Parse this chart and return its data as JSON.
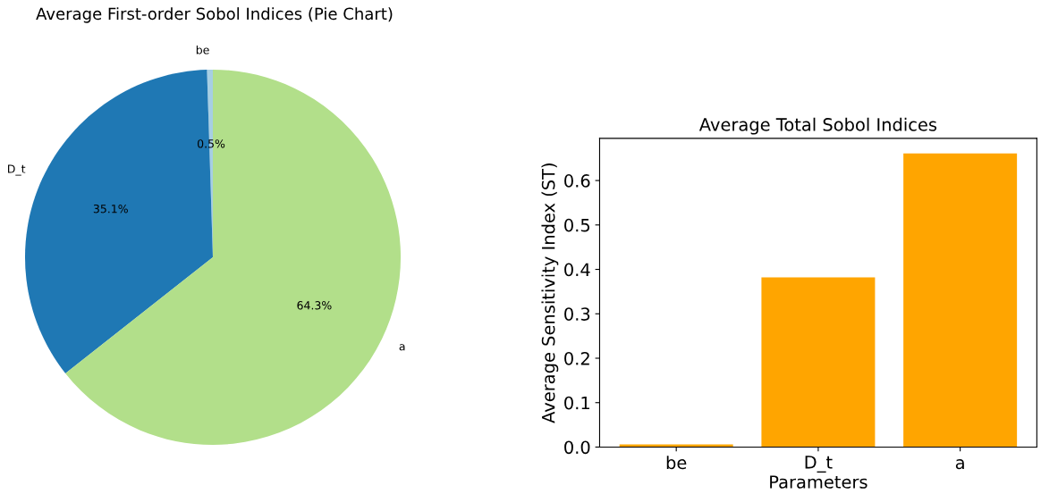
{
  "chart_data": [
    {
      "type": "pie",
      "title": "Average First-order Sobol Indices (Pie Chart)",
      "categories": [
        "be",
        "D_t",
        "a"
      ],
      "values": [
        0.5,
        35.1,
        64.3
      ],
      "colors": [
        "#a6cee3",
        "#1f78b4",
        "#b2df8a"
      ],
      "value_labels": [
        "0.5%",
        "35.1%",
        "64.3%"
      ]
    },
    {
      "type": "bar",
      "title": "Average Total Sobol Indices",
      "xlabel": "Parameters",
      "ylabel": "Average Sensitivity Index (ST)",
      "categories": [
        "be",
        "D_t",
        "a"
      ],
      "values": [
        0.006,
        0.382,
        0.661
      ],
      "color": "#ffa500",
      "ylim": [
        0,
        0.695
      ],
      "yticks": [
        {
          "value": 0,
          "label": "0.0"
        },
        0.1,
        0.2,
        0.3,
        0.4,
        0.5,
        0.6
      ],
      "grid": false
    }
  ]
}
